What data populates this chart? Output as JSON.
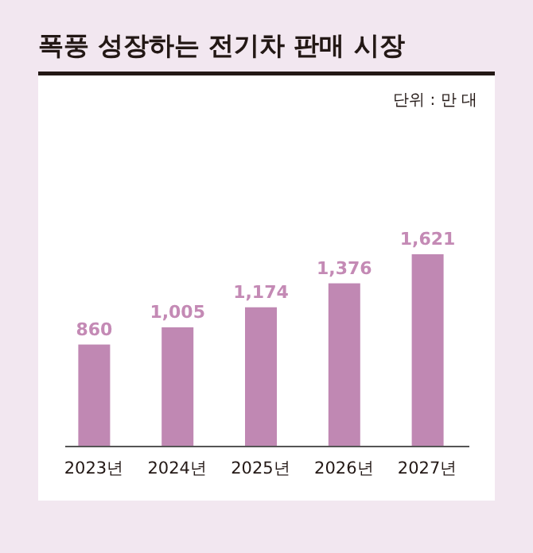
{
  "chart_data": {
    "type": "bar",
    "title": "폭풍 성장하는 전기차 판매 시장",
    "annotations": [
      "단위 : 만 대"
    ],
    "categories": [
      "2023년",
      "2024년",
      "2025년",
      "2026년",
      "2027년"
    ],
    "values": [
      860,
      1005,
      1174,
      1376,
      1621
    ],
    "value_labels": [
      "860",
      "1,005",
      "1,174",
      "1,376",
      "1,621"
    ],
    "color": "#c088b3"
  }
}
